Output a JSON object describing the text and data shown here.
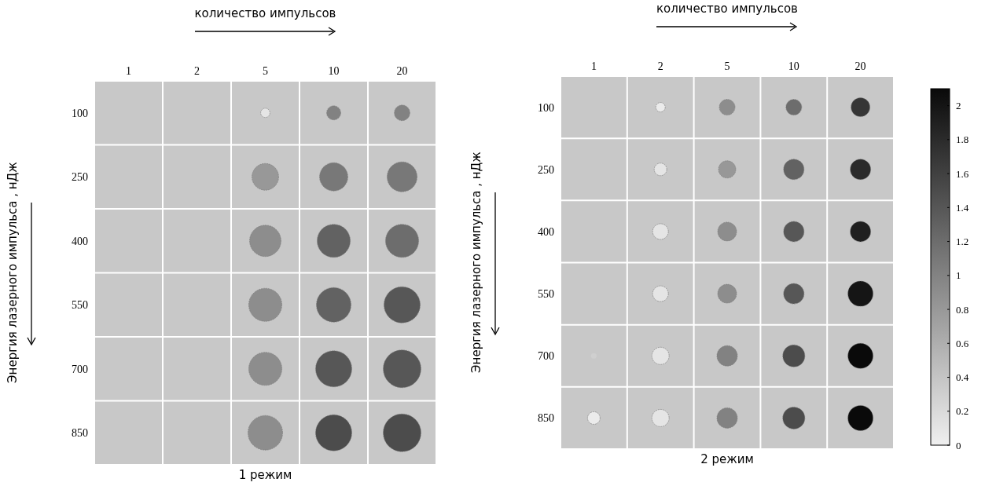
{
  "chart_data": [
    {
      "type": "bubble",
      "title": "1 режим",
      "xlabel": "количество импульсов",
      "ylabel": "Энергия лазерного импульса , нДж",
      "categories": [
        "1",
        "2",
        "5",
        "10",
        "20"
      ],
      "ylim": [
        925,
        25
      ],
      "yticks": [
        100,
        250,
        400,
        550,
        700,
        850
      ],
      "grid": true,
      "series": [
        {
          "x": [
            "5",
            "10",
            "20",
            "5",
            "10",
            "20",
            "5",
            "10",
            "20",
            "5",
            "10",
            "20",
            "5",
            "10",
            "20",
            "5",
            "10",
            "20"
          ],
          "values": [
            100,
            100,
            100,
            250,
            250,
            250,
            400,
            400,
            400,
            550,
            550,
            550,
            700,
            700,
            700,
            850,
            850,
            850
          ],
          "sizes": [
            0.06,
            0.14,
            0.17,
            0.5,
            0.56,
            0.63,
            0.69,
            0.77,
            0.77,
            0.77,
            0.84,
            0.92,
            0.77,
            0.92,
            1,
            0.84,
            0.92,
            1
          ],
          "colors": [
            "#e5e5e5",
            "#828282",
            "#828282",
            "#989898",
            "#787878",
            "#787878",
            "#8d8d8d",
            "#626262",
            "#6d6d6d",
            "#8d8d8d",
            "#626262",
            "#575757",
            "#8d8d8d",
            "#575757",
            "#575757",
            "#8d8d8d",
            "#4c4c4c",
            "#4c4c4c"
          ]
        }
      ]
    },
    {
      "type": "bubble",
      "title": "2 режим",
      "xlabel": "количество импульсов",
      "ylabel": "Энергия лазерного импульса , нДж",
      "categories": [
        "1",
        "2",
        "5",
        "10",
        "20"
      ],
      "ylim": [
        925,
        25
      ],
      "yticks": [
        100,
        250,
        400,
        550,
        700,
        850
      ],
      "grid": true,
      "clim": [
        0,
        2.1
      ],
      "cticks": [
        0,
        0.2,
        0.4,
        0.6,
        0.8,
        1,
        1.2,
        1.4,
        1.6,
        1.8,
        2
      ],
      "series": [
        {
          "x": [
            "2",
            "5",
            "10",
            "20",
            "2",
            "5",
            "10",
            "20",
            "2",
            "5",
            "10",
            "20",
            "2",
            "5",
            "10",
            "20",
            "1",
            "2",
            "5",
            "10",
            "20",
            "1",
            "2",
            "5",
            "10",
            "20"
          ],
          "values": [
            100,
            100,
            100,
            100,
            250,
            250,
            250,
            250,
            400,
            400,
            400,
            400,
            550,
            550,
            550,
            550,
            700,
            700,
            700,
            700,
            700,
            850,
            850,
            850,
            850,
            850
          ],
          "sizes": [
            0.14,
            0.39,
            0.39,
            0.56,
            0.25,
            0.47,
            0.66,
            0.66,
            0.39,
            0.56,
            0.66,
            0.66,
            0.39,
            0.56,
            0.66,
            1,
            0.05,
            0.47,
            0.66,
            0.77,
            1,
            0.25,
            0.47,
            0.66,
            0.77,
            1
          ],
          "cvalues": [
            0.05,
            0.9,
            1.2,
            1.7,
            0.1,
            0.8,
            1.3,
            1.8,
            0.1,
            0.9,
            1.4,
            1.9,
            0.1,
            0.9,
            1.4,
            2.0,
            0.3,
            0.1,
            1.0,
            1.5,
            2.1,
            0.05,
            0.1,
            1.0,
            1.5,
            2.1
          ]
        }
      ]
    }
  ]
}
